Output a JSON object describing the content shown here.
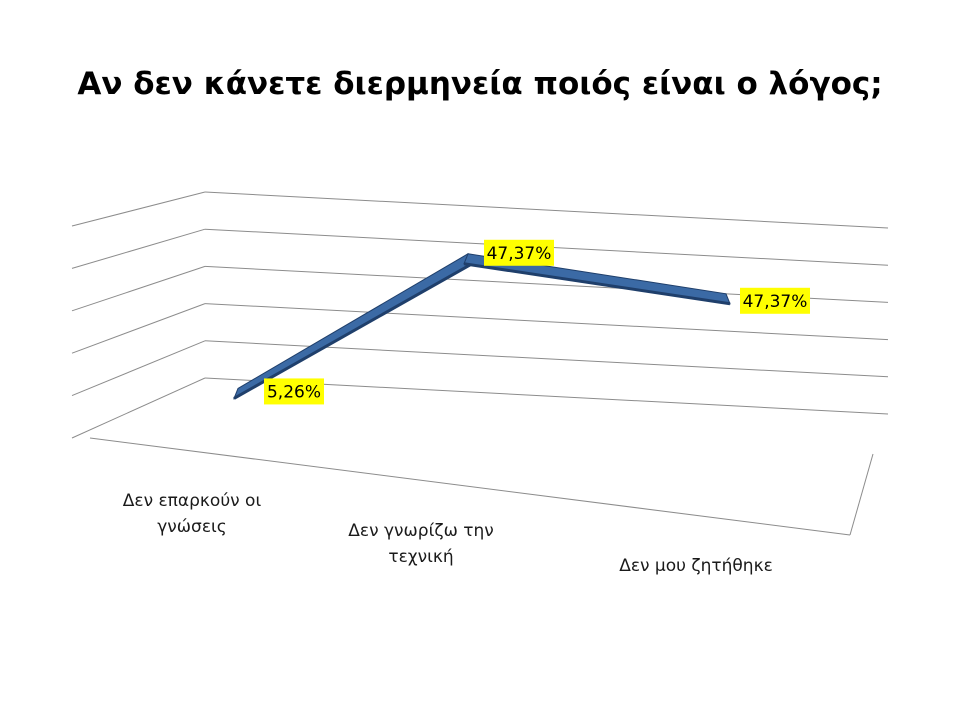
{
  "chart_data": {
    "type": "line",
    "title": "Αν δεν κάνετε διερμηνεία ποιός είναι ο λόγος;",
    "categories": [
      "Δεν επαρκούν οι γνώσεις",
      "Δεν γνωρίζω την τεχνική",
      "Δεν μου ζητήθηκε"
    ],
    "series": [
      {
        "values": [
          5.26,
          47.37,
          47.37
        ]
      }
    ],
    "data_labels": [
      "5,26%",
      "47,37%",
      "47,37%"
    ],
    "ylim": [
      0,
      50
    ],
    "grid": true,
    "three_d": true,
    "legend": "none",
    "colors": {
      "line": "#3b6aa5",
      "line_dark": "#1f3f6b",
      "label_bg": "#ffff00",
      "grid": "#8c8c8c"
    }
  }
}
